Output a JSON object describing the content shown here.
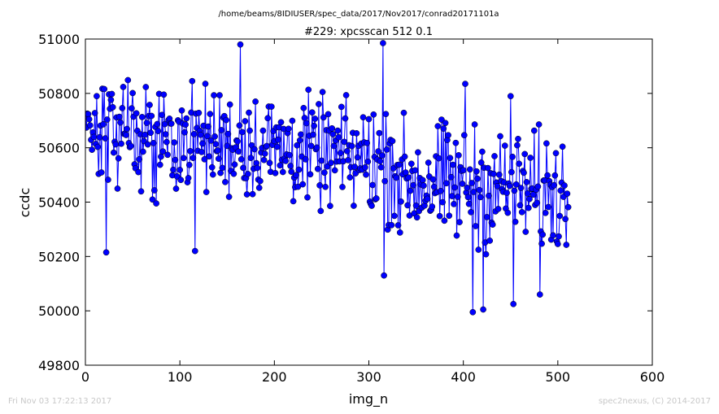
{
  "chart_data": {
    "type": "line",
    "title": "#229: xpcsscan 512 0.1",
    "suptitle": "/home/beams/8IDIUSER/spec_data/2017/Nov2017/conrad20171101a",
    "xlabel": "img_n",
    "ylabel": "ccdc",
    "xlim": [
      0,
      600
    ],
    "ylim": [
      49800,
      51000
    ],
    "xticks": [
      "0",
      "100",
      "200",
      "300",
      "400",
      "500",
      "600"
    ],
    "yticks": [
      "49800",
      "50000",
      "50200",
      "50400",
      "50600",
      "50800",
      "51000"
    ],
    "grid": false,
    "marker": "circle",
    "color": "#0000ff",
    "n_points": 512,
    "highlights": [
      {
        "x": 22,
        "y": 50215
      },
      {
        "x": 116,
        "y": 50220
      },
      {
        "x": 164,
        "y": 50980
      },
      {
        "x": 315,
        "y": 50985
      },
      {
        "x": 316,
        "y": 50130
      },
      {
        "x": 402,
        "y": 50835
      },
      {
        "x": 410,
        "y": 49995
      },
      {
        "x": 421,
        "y": 50005
      },
      {
        "x": 450,
        "y": 50790
      },
      {
        "x": 453,
        "y": 50025
      },
      {
        "x": 481,
        "y": 50060
      }
    ]
  },
  "footer": {
    "timestamp": "Fri Nov 03 17:22:13 2017",
    "credit": "spec2nexus, (C) 2014-2017"
  },
  "colors": {
    "series": "#0000ff",
    "axes": "#000000",
    "footer": "#c8c8c8"
  }
}
